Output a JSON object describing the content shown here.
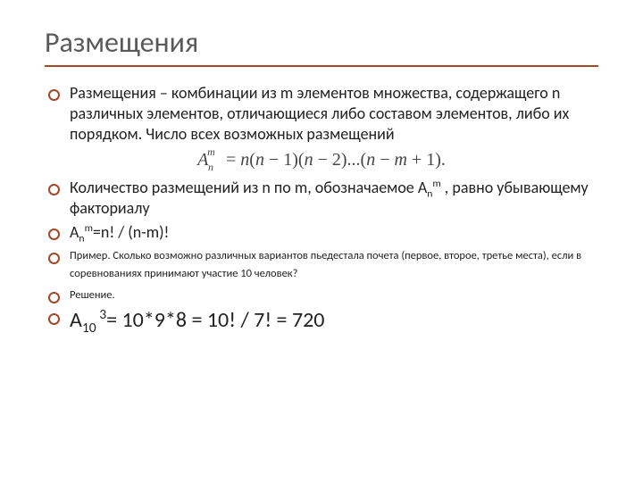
{
  "title": "Размещения",
  "accent_color": "#a04828",
  "title_color": "#5a5a5a",
  "text_color": "#222222",
  "body_fontsize": 18,
  "small_fontsize": 12.5,
  "large_fontsize": 24,
  "formula": {
    "base": "A",
    "sup": "m",
    "sub": "n",
    "rhs_prefix": " = n(n − 1)(n − 2)...(n − m + 1).",
    "font": "Times New Roman italic",
    "fontsize": 20
  },
  "bullets": [
    {
      "size": "body",
      "parts": [
        {
          "t": "Размещения – комбинации из m элементов множества, содержащего n различных элементов, отличающиеся либо составом элементов, либо их порядком. Число всех возможных размещений"
        }
      ]
    },
    {
      "size": "body",
      "parts": [
        {
          "t": "Количество размещений из n по m, обозначаемое A"
        },
        {
          "t": "n",
          "style": "sub"
        },
        {
          "t": "m",
          "style": "sup"
        },
        {
          "t": " , равно убывающему факториалу"
        }
      ]
    },
    {
      "size": "body",
      "parts": [
        {
          "t": "A"
        },
        {
          "t": "n",
          "style": "sub"
        },
        {
          "t": "m",
          "style": "sup"
        },
        {
          "t": "=n! / (n-m)!"
        }
      ]
    },
    {
      "size": "small",
      "parts": [
        {
          "t": "Пример. Сколько возможно различных вариантов пьедестала почета (первое, второе, третье места), если в соревнованиях принимают участие 10 человек?"
        }
      ]
    },
    {
      "size": "small",
      "parts": [
        {
          "t": "Решение."
        }
      ]
    },
    {
      "size": "large",
      "parts": [
        {
          "t": "A"
        },
        {
          "t": "10 ",
          "style": "sub"
        },
        {
          "t": "3",
          "style": "sup"
        },
        {
          "t": "= 10*9*8 = 10! / 7! = 720"
        }
      ]
    }
  ]
}
